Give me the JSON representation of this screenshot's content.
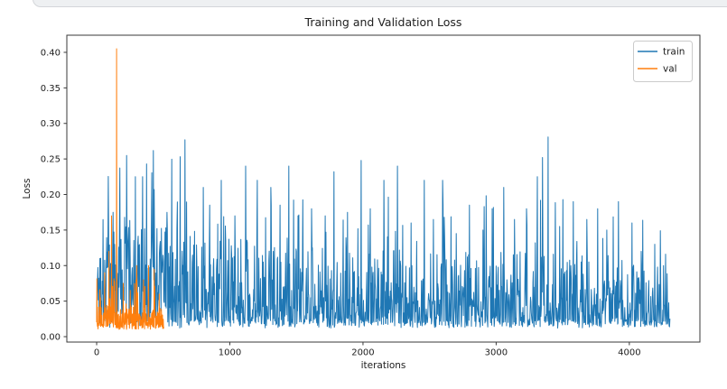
{
  "window": {
    "top_edge_note": "rounded light-gray card edge strip"
  },
  "chart_data": {
    "type": "line",
    "title": "Training and Validation Loss",
    "xlabel": "iterations",
    "ylabel": "Loss",
    "xlim": [
      -224,
      4530
    ],
    "ylim": [
      -0.0076,
      0.4241
    ],
    "grid": false,
    "legend_position": "upper right",
    "axis_color": "#3a3a3a",
    "xticks": {
      "values": [
        0,
        1000,
        2000,
        3000,
        4000
      ],
      "labels": [
        "0",
        "1000",
        "2000",
        "3000",
        "4000"
      ]
    },
    "yticks": {
      "values": [
        0.0,
        0.05,
        0.1,
        0.15,
        0.2,
        0.25,
        0.3,
        0.35,
        0.4
      ],
      "labels": [
        "0.00",
        "0.05",
        "0.10",
        "0.15",
        "0.20",
        "0.25",
        "0.30",
        "0.35",
        "0.40"
      ]
    },
    "seed": 1337,
    "series": [
      {
        "name": "train",
        "color": "#1f77b4",
        "x_start": 0,
        "x_end": 4305,
        "step": 3,
        "baseline": 0.012,
        "baseline_jitter": 0.01,
        "amp_profile": [
          [
            0,
            0.155
          ],
          [
            500,
            0.15
          ],
          [
            1200,
            0.115
          ],
          [
            2500,
            0.105
          ],
          [
            3500,
            0.098
          ],
          [
            4305,
            0.085
          ]
        ],
        "skew": 2.4,
        "skew_early": 1.6,
        "skew_early_until": 520,
        "whisker_prob": 0.035,
        "whisker_scale": 1.35,
        "spikes": [
          [
            122,
            0.175
          ],
          [
            224,
            0.255
          ],
          [
            292,
            0.225
          ],
          [
            346,
            0.225
          ],
          [
            427,
            0.262
          ],
          [
            529,
            0.175
          ],
          [
            664,
            0.277
          ],
          [
            800,
            0.21
          ],
          [
            848,
            0.185
          ],
          [
            936,
            0.22
          ],
          [
            1037,
            0.17
          ],
          [
            1119,
            0.24
          ],
          [
            1207,
            0.22
          ],
          [
            1309,
            0.21
          ],
          [
            1376,
            0.185
          ],
          [
            1444,
            0.24
          ],
          [
            1512,
            0.17
          ],
          [
            1614,
            0.18
          ],
          [
            1715,
            0.17
          ],
          [
            1783,
            0.232
          ],
          [
            1885,
            0.175
          ],
          [
            1986,
            0.248
          ],
          [
            2054,
            0.18
          ],
          [
            2156,
            0.22
          ],
          [
            2258,
            0.24
          ],
          [
            2360,
            0.16
          ],
          [
            2461,
            0.22
          ],
          [
            2529,
            0.165
          ],
          [
            2597,
            0.22
          ],
          [
            2699,
            0.145
          ],
          [
            2800,
            0.185
          ],
          [
            2902,
            0.15
          ],
          [
            2970,
            0.18
          ],
          [
            3058,
            0.21
          ],
          [
            3139,
            0.165
          ],
          [
            3227,
            0.18
          ],
          [
            3309,
            0.225
          ],
          [
            3349,
            0.252
          ],
          [
            3390,
            0.281
          ],
          [
            3478,
            0.155
          ],
          [
            3580,
            0.19
          ],
          [
            3681,
            0.165
          ],
          [
            3763,
            0.18
          ],
          [
            3831,
            0.15
          ],
          [
            3919,
            0.19
          ],
          [
            4021,
            0.16
          ],
          [
            4088,
            0.12
          ],
          [
            4190,
            0.13
          ],
          [
            4258,
            0.1
          ]
        ]
      },
      {
        "name": "val",
        "color": "#ff7f0e",
        "x_start": 0,
        "x_end": 505,
        "step": 2,
        "baseline": 0.01,
        "baseline_jitter": 0.007,
        "amp_profile": [
          [
            0,
            0.03
          ],
          [
            505,
            0.03
          ]
        ],
        "skew": 2.0,
        "whisker_prob": 0.05,
        "whisker_scale": 1.8,
        "spikes": [
          [
            60,
            0.09
          ],
          [
            92,
            0.12
          ],
          [
            112,
            0.17
          ],
          [
            150,
            0.405
          ],
          [
            152,
            0.08
          ],
          [
            200,
            0.075
          ],
          [
            252,
            0.065
          ],
          [
            300,
            0.1
          ],
          [
            352,
            0.08
          ],
          [
            390,
            0.1
          ],
          [
            432,
            0.095
          ],
          [
            470,
            0.06
          ]
        ]
      }
    ]
  }
}
